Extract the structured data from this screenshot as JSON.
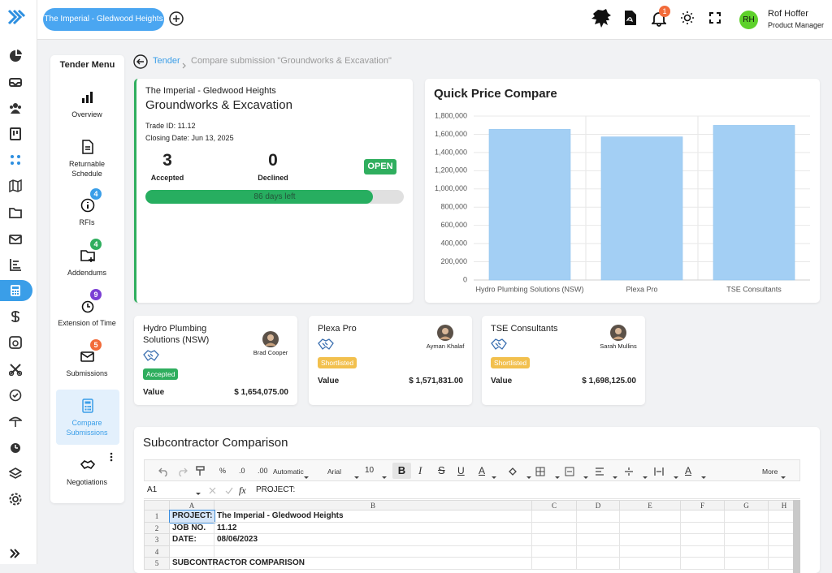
{
  "header": {
    "project": "The Imperial - Gledwood Heights",
    "notifications": 1,
    "user": {
      "initials": "RH",
      "name": "Rof Hoffer",
      "role": "Product Manager"
    }
  },
  "menu": {
    "title": "Tender Menu",
    "items": [
      {
        "label": "Overview"
      },
      {
        "label": "Returnable Schedule"
      },
      {
        "label": "RFIs",
        "badge": 4
      },
      {
        "label": "Addendums",
        "badge": 4
      },
      {
        "label": "Extension of Time",
        "badge": 9
      },
      {
        "label": "Submissions",
        "badge": 5
      },
      {
        "label": "Compare Submissions"
      },
      {
        "label": "Negotiations"
      }
    ]
  },
  "breadcrumb": {
    "parent": "Tender",
    "current": "Compare submission \"Groundworks & Excavation\""
  },
  "trade": {
    "project": "The Imperial - Gledwood Heights",
    "name": "Groundworks & Excavation",
    "trade_id": "Trade ID: 11.12",
    "closing_date": "Closing Date: Jun 13, 2025",
    "accepted": 3,
    "accepted_label": "Accepted",
    "declined": 0,
    "declined_label": "Declined",
    "status": "OPEN",
    "days_left": "86 days left"
  },
  "chart_data": {
    "type": "bar",
    "title": "Quick Price Compare",
    "categories": [
      "Hydro Plumbing Solutions (NSW)",
      "Plexa Pro",
      "TSE Consultants"
    ],
    "values": [
      1654075,
      1571831,
      1698125
    ],
    "color": "#a3cff4",
    "ylim": [
      0,
      1800000
    ],
    "yticks": [
      0,
      {
        "value": 200000,
        "label": "200,000"
      },
      {
        "value": 400000,
        "label": "400,000"
      },
      {
        "value": 600000,
        "label": "600,000"
      },
      {
        "value": 800000,
        "label": "800,000"
      },
      {
        "value": 1000000,
        "label": "1,000,000"
      },
      {
        "value": 1200000,
        "label": "1,200,000"
      },
      {
        "value": 1400000,
        "label": "1,400,000"
      },
      {
        "value": 1600000,
        "label": "1,600,000"
      },
      {
        "value": 1800000,
        "label": "1,800,000"
      }
    ],
    "grid": true
  },
  "submissions": [
    {
      "company": "Hydro Plumbing Solutions (NSW)",
      "contact": "Brad Cooper",
      "status": "Accepted",
      "value_label": "Value",
      "amount": "$ 1,654,075.00"
    },
    {
      "company": "Plexa Pro",
      "contact": "Ayman Khalaf",
      "status": "Shortlisted",
      "value_label": "Value",
      "amount": "$ 1,571,831.00"
    },
    {
      "company": "TSE Consultants",
      "contact": "Sarah Mullins",
      "status": "Shortlisted",
      "value_label": "Value",
      "amount": "$ 1,698,125.00"
    }
  ],
  "comparison": {
    "title": "Subcontractor Comparison",
    "toolbar": [
      "%",
      ".0",
      ".00",
      "Automatic",
      "Arial",
      "10",
      "B",
      "I",
      "S",
      "U",
      "A",
      "A",
      "More"
    ],
    "cell_ref": "A1",
    "fx": "fx",
    "formula": "PROJECT:",
    "columns": [
      "A",
      "B",
      "C",
      "D",
      "E",
      "F",
      "G",
      "H"
    ],
    "rows": [
      {
        "number": 1,
        "cells": [
          "PROJECT:",
          "The Imperial - Gledwood Heights"
        ]
      },
      {
        "number": 2,
        "cells": [
          "JOB NO.",
          "11.12"
        ]
      },
      {
        "number": 3,
        "cells": [
          "DATE:",
          "08/06/2023"
        ]
      },
      {
        "number": 4,
        "cells": []
      },
      {
        "number": 5,
        "cells": [
          "SUBCONTRACTOR COMPARISON"
        ]
      }
    ]
  }
}
